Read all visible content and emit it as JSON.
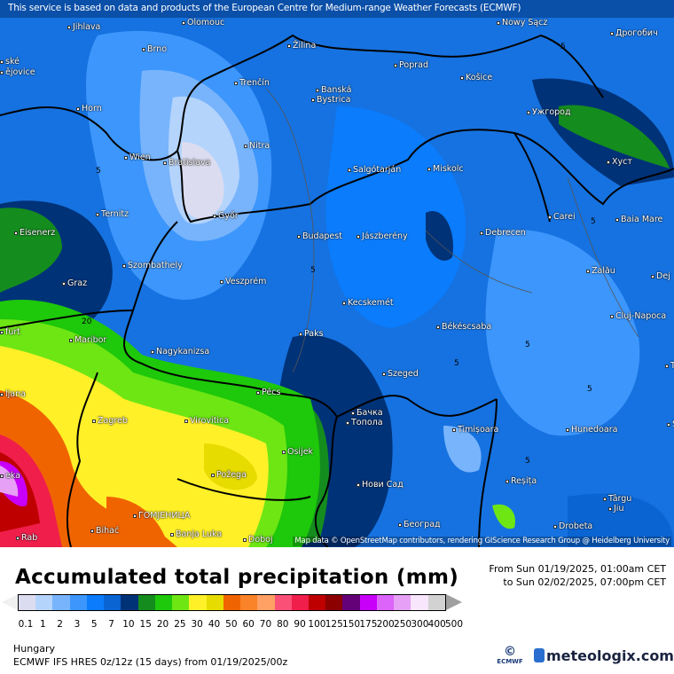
{
  "map": {
    "top_note": "This service is based on data and products of the European Centre for Medium-range Weather Forecasts (ECMWF)",
    "attribution": "Map data © OpenStreetMap contributors, rendering GIScience Research Group @ Heidelberg University",
    "cities": [
      "Olomouc",
      "Nowy Sącz",
      "Jihlava",
      "Brno",
      "Žilina",
      "Poprad",
      "Дрогобич",
      "ské",
      "ějovice",
      "Trenčín",
      "Banská",
      "Bystrica",
      "Košice",
      "Ужгород",
      "Horn",
      "Nitra",
      "Wien",
      "Bratislava",
      "Salgótarján",
      "Miskolc",
      "Хуст",
      "Ternitz",
      "Győr",
      "Carei",
      "Baia Mare",
      "Eisenerz",
      "Budapest",
      "Jászberény",
      "Debrecen",
      "Szombathely",
      "Zalău",
      "Dej",
      "Graz",
      "Veszprém",
      "Kecskemét",
      "Cluj-Napoca",
      "furt",
      "Maribor",
      "Paks",
      "Békéscsaba",
      "Nagykanizsa",
      "Ta",
      "ljana",
      "Pécs",
      "Szeged",
      "Бачка",
      "Топола",
      "Zagreb",
      "Virovitica",
      "Timișoara",
      "Hunedoara",
      "Osijek",
      "Požega",
      "Reșița",
      "eka",
      "Нови Сад",
      "Târgu",
      "Jiu",
      "ГОМЈЕНИЦА",
      "Bihać",
      "Banja Luka",
      "Doboj",
      "Београд",
      "Drobeta",
      "Rab",
      "S"
    ],
    "contour_labels": [
      "5",
      "5",
      "5",
      "5",
      "20",
      "5",
      "5",
      "5",
      "5"
    ]
  },
  "title": "Accumulated total precipitation (mm)",
  "period": {
    "from": "From Sun 01/19/2025, 01:00am CET",
    "to": "to Sun 02/02/2025, 07:00pm CET"
  },
  "legend": {
    "under_color": "#f0f0f0",
    "over_color": "#a0a0a0",
    "colors": [
      "#dcdcf0",
      "#b4d4fc",
      "#78b4fc",
      "#3c96fc",
      "#0a7cfc",
      "#0a64d2",
      "#003278",
      "#148c1e",
      "#1ec80a",
      "#6ee614",
      "#fff028",
      "#e6dc00",
      "#f06400",
      "#fa8228",
      "#ffa064",
      "#fa5078",
      "#f01e4b",
      "#be0000",
      "#8c0000",
      "#640078",
      "#c800fa",
      "#dc64fa",
      "#e6a0f5",
      "#f8e6fc",
      "#d2d2d2"
    ],
    "ticks": [
      "0.1",
      "1",
      "2",
      "3",
      "5",
      "7",
      "10",
      "15",
      "20",
      "25",
      "30",
      "40",
      "50",
      "60",
      "70",
      "80",
      "90",
      "100",
      "125",
      "150",
      "175",
      "200",
      "250",
      "300",
      "400",
      "500"
    ]
  },
  "footer": {
    "region": "Hungary",
    "model": "ECMWF IFS HRES 0z/12z (15 days) from  01/19/2025/00z",
    "ecmwf_logo": "ECMWF",
    "brand": "meteologix.com"
  }
}
